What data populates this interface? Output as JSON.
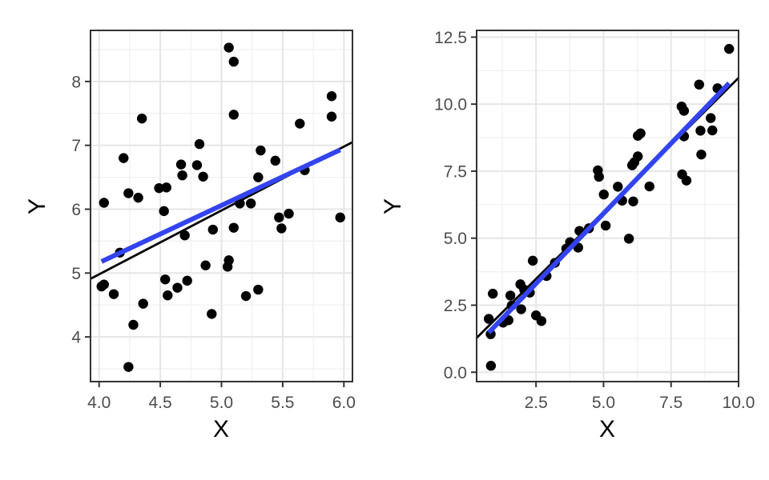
{
  "chart_data": [
    {
      "type": "scatter",
      "xlabel": "X",
      "ylabel": "Y",
      "xlim": [
        3.93,
        6.07
      ],
      "ylim": [
        3.3,
        8.8
      ],
      "xticks": [
        "4.0",
        "4.5",
        "5.0",
        "5.5",
        "6.0"
      ],
      "xtick_values": [
        4.0,
        4.5,
        5.0,
        5.5,
        6.0
      ],
      "yticks": [
        "4",
        "5",
        "6",
        "7",
        "8"
      ],
      "ytick_values": [
        4,
        5,
        6,
        7,
        8
      ],
      "grid": true,
      "points": [
        [
          4.02,
          4.79
        ],
        [
          4.04,
          4.82
        ],
        [
          4.04,
          6.1
        ],
        [
          4.12,
          4.67
        ],
        [
          4.17,
          5.32
        ],
        [
          4.2,
          6.8
        ],
        [
          4.24,
          6.25
        ],
        [
          4.24,
          3.53
        ],
        [
          4.28,
          4.19
        ],
        [
          4.32,
          6.18
        ],
        [
          4.35,
          7.42
        ],
        [
          4.36,
          4.52
        ],
        [
          4.49,
          6.33
        ],
        [
          4.53,
          5.97
        ],
        [
          4.54,
          4.9
        ],
        [
          4.55,
          6.34
        ],
        [
          4.56,
          4.65
        ],
        [
          4.64,
          4.77
        ],
        [
          4.67,
          6.7
        ],
        [
          4.68,
          6.53
        ],
        [
          4.7,
          5.59
        ],
        [
          4.72,
          4.88
        ],
        [
          4.8,
          6.69
        ],
        [
          4.82,
          7.02
        ],
        [
          4.85,
          6.51
        ],
        [
          4.87,
          5.12
        ],
        [
          4.92,
          4.36
        ],
        [
          4.93,
          5.68
        ],
        [
          5.05,
          5.1
        ],
        [
          5.06,
          5.2
        ],
        [
          5.06,
          8.53
        ],
        [
          5.1,
          8.31
        ],
        [
          5.1,
          7.48
        ],
        [
          5.1,
          5.71
        ],
        [
          5.15,
          6.09
        ],
        [
          5.2,
          4.64
        ],
        [
          5.24,
          6.09
        ],
        [
          5.3,
          4.74
        ],
        [
          5.3,
          6.5
        ],
        [
          5.32,
          6.92
        ],
        [
          5.44,
          6.76
        ],
        [
          5.47,
          5.87
        ],
        [
          5.49,
          5.7
        ],
        [
          5.55,
          5.93
        ],
        [
          5.64,
          7.34
        ],
        [
          5.68,
          6.61
        ],
        [
          5.9,
          7.77
        ],
        [
          5.9,
          7.45
        ],
        [
          5.97,
          5.87
        ]
      ],
      "fit_line": {
        "color": "#3344ee",
        "x": [
          4.02,
          5.97
        ],
        "y": [
          5.18,
          6.93
        ]
      },
      "reference_line": {
        "color": "#000000",
        "slope": 1.0,
        "intercept": 0.98
      }
    },
    {
      "type": "scatter",
      "xlabel": "X",
      "ylabel": "Y",
      "xlim": [
        0.3,
        10.0
      ],
      "ylim": [
        -0.35,
        12.75
      ],
      "xticks": [
        "2.5",
        "5.0",
        "7.5",
        "10.0"
      ],
      "xtick_values": [
        2.5,
        5.0,
        7.5,
        10.0
      ],
      "yticks": [
        "0.0",
        "2.5",
        "5.0",
        "7.5",
        "10.0",
        "12.5"
      ],
      "ytick_values": [
        0.0,
        2.5,
        5.0,
        7.5,
        10.0,
        12.5
      ],
      "grid": true,
      "points": [
        [
          0.75,
          1.99
        ],
        [
          0.82,
          1.42
        ],
        [
          0.83,
          0.24
        ],
        [
          0.9,
          2.93
        ],
        [
          1.28,
          1.85
        ],
        [
          1.48,
          1.94
        ],
        [
          1.55,
          2.86
        ],
        [
          1.6,
          2.49
        ],
        [
          1.92,
          3.28
        ],
        [
          1.95,
          2.35
        ],
        [
          2.06,
          3.08
        ],
        [
          2.27,
          2.97
        ],
        [
          2.38,
          4.16
        ],
        [
          2.5,
          2.12
        ],
        [
          2.7,
          1.91
        ],
        [
          2.89,
          3.59
        ],
        [
          3.2,
          4.08
        ],
        [
          3.62,
          4.61
        ],
        [
          3.76,
          4.85
        ],
        [
          4.06,
          4.65
        ],
        [
          4.11,
          5.27
        ],
        [
          4.46,
          5.37
        ],
        [
          4.79,
          7.53
        ],
        [
          4.83,
          7.29
        ],
        [
          5.01,
          6.63
        ],
        [
          5.08,
          5.47
        ],
        [
          5.53,
          6.92
        ],
        [
          5.69,
          6.4
        ],
        [
          5.94,
          4.98
        ],
        [
          6.06,
          7.72
        ],
        [
          6.1,
          6.37
        ],
        [
          6.14,
          7.83
        ],
        [
          6.27,
          8.82
        ],
        [
          6.27,
          8.05
        ],
        [
          6.37,
          8.91
        ],
        [
          6.7,
          6.93
        ],
        [
          7.89,
          9.91
        ],
        [
          7.91,
          7.38
        ],
        [
          7.98,
          8.8
        ],
        [
          7.98,
          9.75
        ],
        [
          8.07,
          7.15
        ],
        [
          8.54,
          10.73
        ],
        [
          8.59,
          9.01
        ],
        [
          8.62,
          8.12
        ],
        [
          8.97,
          9.48
        ],
        [
          9.03,
          9.02
        ],
        [
          9.22,
          10.59
        ],
        [
          9.65,
          12.06
        ]
      ],
      "fit_line": {
        "color": "#3344ee",
        "x": [
          0.75,
          9.65
        ],
        "y": [
          1.48,
          10.78
        ]
      },
      "reference_line": {
        "color": "#000000",
        "slope": 1.0,
        "intercept": 0.98
      }
    }
  ]
}
